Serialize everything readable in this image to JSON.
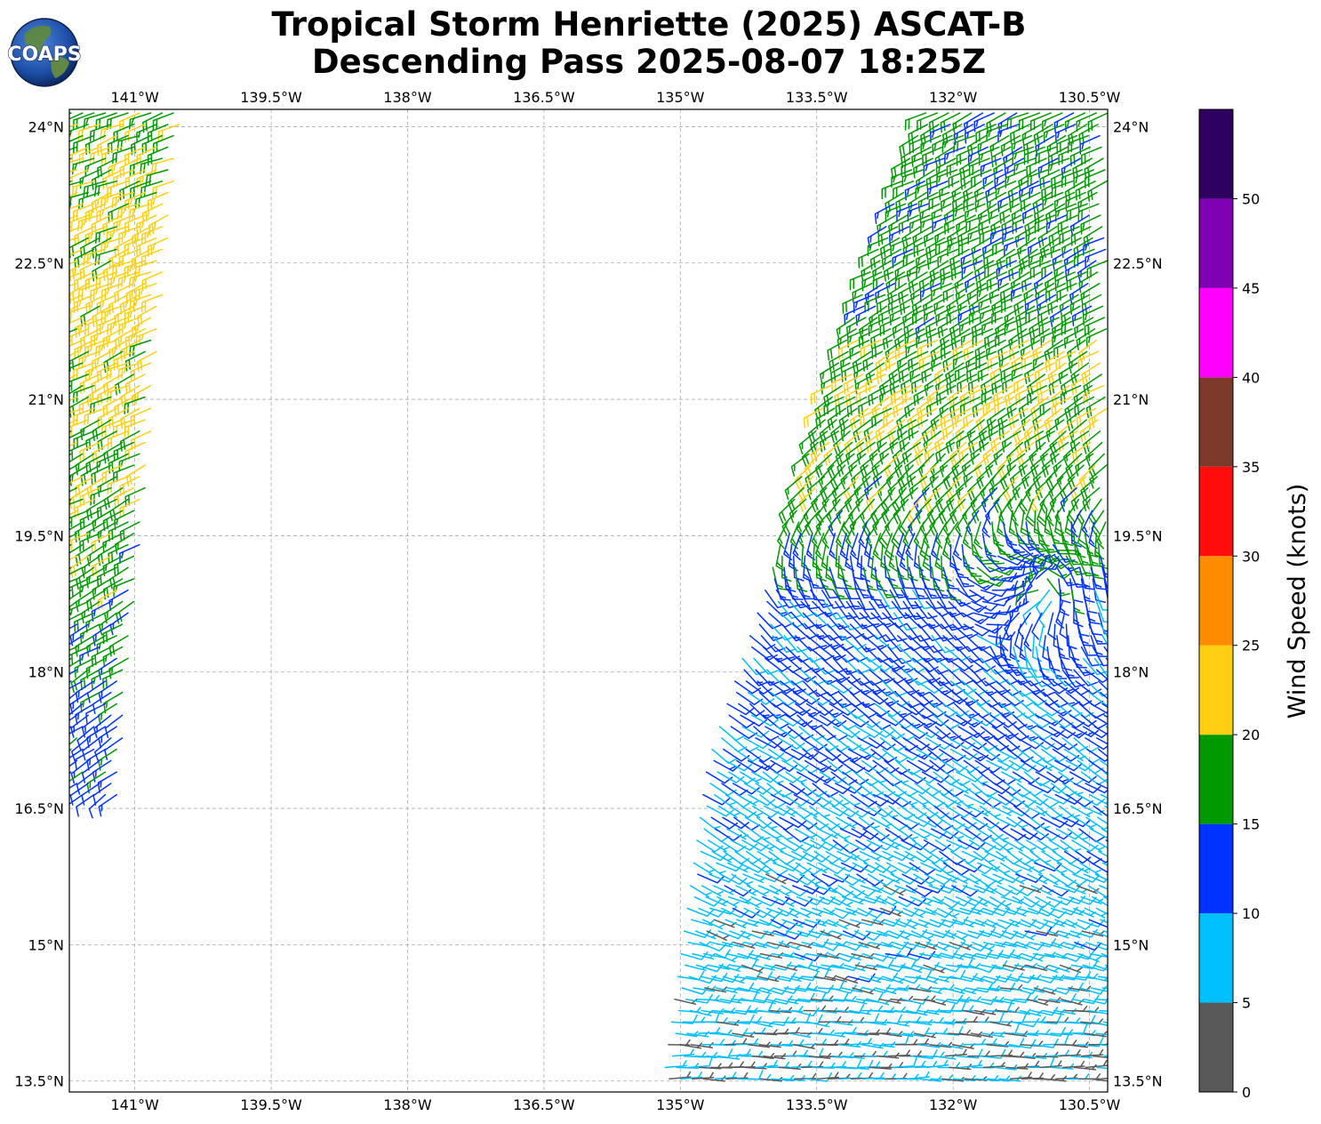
{
  "logo": {
    "text": "COAPS"
  },
  "chart_data": {
    "type": "wind-barbs",
    "title": "Tropical Storm Henriette (2025) ASCAT-B",
    "subtitle": "Descending Pass 2025-08-07 18:25Z",
    "x_ticks": [
      {
        "value": -141.0,
        "label": "141°W"
      },
      {
        "value": -139.5,
        "label": "139.5°W"
      },
      {
        "value": -138.0,
        "label": "138°W"
      },
      {
        "value": -136.5,
        "label": "136.5°W"
      },
      {
        "value": -135.0,
        "label": "135°W"
      },
      {
        "value": -133.5,
        "label": "133.5°W"
      },
      {
        "value": -132.0,
        "label": "132°W"
      },
      {
        "value": -130.5,
        "label": "130.5°W"
      }
    ],
    "y_ticks": [
      {
        "value": 24.0,
        "label": "24°N"
      },
      {
        "value": 22.5,
        "label": "22.5°N"
      },
      {
        "value": 21.0,
        "label": "21°N"
      },
      {
        "value": 19.5,
        "label": "19.5°N"
      },
      {
        "value": 18.0,
        "label": "18°N"
      },
      {
        "value": 16.5,
        "label": "16.5°N"
      },
      {
        "value": 15.0,
        "label": "15°N"
      },
      {
        "value": 13.5,
        "label": "13.5°N"
      }
    ],
    "lon_range": [
      -141.72,
      -130.3
    ],
    "lat_range": [
      13.38,
      24.19
    ],
    "grid": true,
    "colorbar": {
      "label": "Wind Speed (knots)",
      "bounds": [
        0,
        5,
        10,
        15,
        20,
        25,
        30,
        35,
        40,
        45,
        50,
        55
      ],
      "tick_labels": [
        "0",
        "5",
        "10",
        "15",
        "20",
        "25",
        "30",
        "35",
        "40",
        "45",
        "50"
      ],
      "colors": [
        "#595959",
        "#00bfff",
        "#0033ff",
        "#009900",
        "#ffd011",
        "#ff8c00",
        "#ff0d0d",
        "#7d3a2b",
        "#ff00ff",
        "#8000b3",
        "#2e0060"
      ]
    },
    "swaths": [
      {
        "name": "west",
        "west_edge": [
          [
            -141.7,
            24.15
          ],
          [
            -141.7,
            16.55
          ]
        ],
        "east_edge": [
          [
            -140.5,
            24.15
          ],
          [
            -141.2,
            16.55
          ]
        ],
        "wind_field": [
          {
            "lat": 24.2,
            "speed_kt": 18,
            "dir_to_deg": 70
          },
          {
            "lat": 23.0,
            "speed_kt": 22,
            "dir_to_deg": 68
          },
          {
            "lat": 21.8,
            "speed_kt": 22,
            "dir_to_deg": 66
          },
          {
            "lat": 20.8,
            "speed_kt": 20,
            "dir_to_deg": 65
          },
          {
            "lat": 19.5,
            "speed_kt": 18,
            "dir_to_deg": 62
          },
          {
            "lat": 18.2,
            "speed_kt": 16,
            "dir_to_deg": 60
          },
          {
            "lat": 17.3,
            "speed_kt": 13,
            "dir_to_deg": 55
          },
          {
            "lat": 16.6,
            "speed_kt": 13,
            "dir_to_deg": 55
          }
        ]
      },
      {
        "name": "east",
        "west_edge": [
          [
            -132.3,
            24.15
          ],
          [
            -133.4,
            21.0
          ],
          [
            -133.9,
            19.4
          ],
          [
            -134.7,
            17.0
          ],
          [
            -135.2,
            13.4
          ]
        ],
        "east_edge": [
          [
            -130.3,
            24.15
          ],
          [
            -130.3,
            13.4
          ]
        ],
        "wind_field": [
          {
            "lat": 24.0,
            "speed_kt": 17,
            "dir_to_deg": 65
          },
          {
            "lat": 22.0,
            "speed_kt": 17,
            "dir_to_deg": 62
          },
          {
            "lat": 21.0,
            "speed_kt": 20,
            "dir_to_deg": 60
          },
          {
            "lat": 19.8,
            "speed_kt": 17,
            "dir_to_deg": 40
          },
          {
            "lat": 18.8,
            "speed_kt": 12,
            "dir_to_deg": 320
          },
          {
            "lat": 17.5,
            "speed_kt": 11,
            "dir_to_deg": 305
          },
          {
            "lat": 16.0,
            "speed_kt": 8,
            "dir_to_deg": 300
          },
          {
            "lat": 14.5,
            "speed_kt": 7,
            "dir_to_deg": 280
          },
          {
            "lat": 13.6,
            "speed_kt": 5,
            "dir_to_deg": 270
          }
        ],
        "cyclonic_center": {
          "lon": -131.0,
          "lat": 19.0
        }
      }
    ]
  }
}
